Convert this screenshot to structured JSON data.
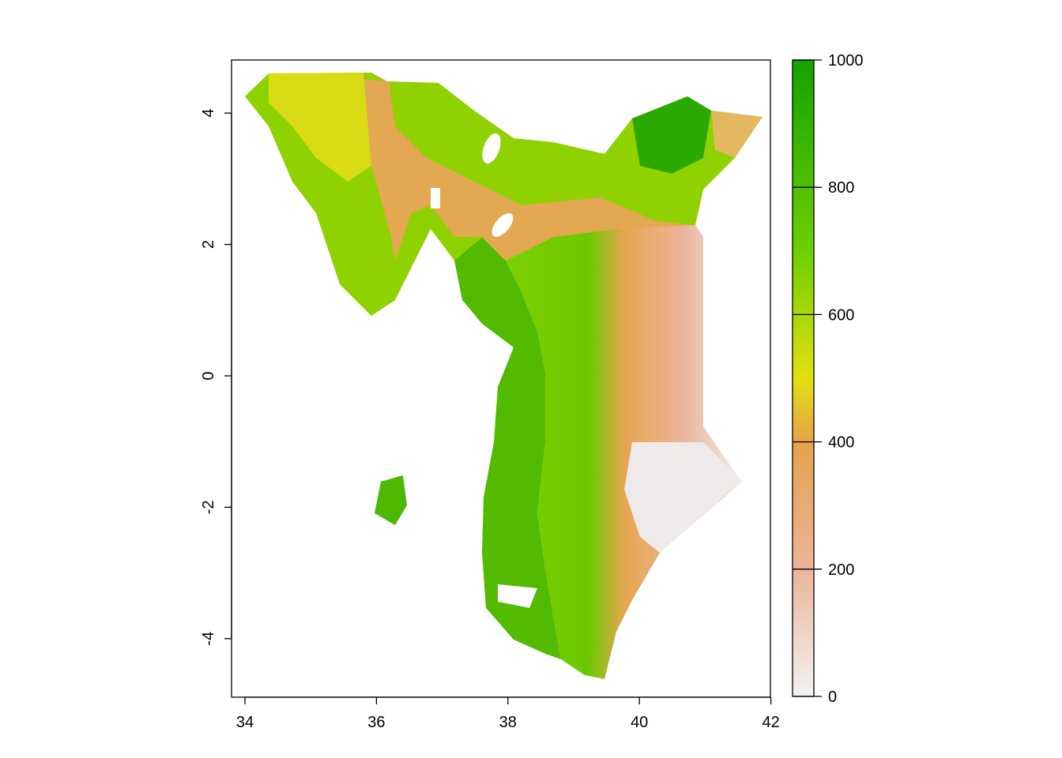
{
  "map": {
    "x_axis": {
      "range": [
        33.8,
        42.0
      ],
      "ticks": [
        {
          "value": 34,
          "label": "34"
        },
        {
          "value": 36,
          "label": "36"
        },
        {
          "value": 38,
          "label": "38"
        },
        {
          "value": 40,
          "label": "40"
        },
        {
          "value": 42,
          "label": "42"
        }
      ]
    },
    "y_axis": {
      "range": [
        -4.9,
        4.8
      ],
      "ticks": [
        {
          "value": 4,
          "label": "4"
        },
        {
          "value": 2,
          "label": "2"
        },
        {
          "value": 0,
          "label": "0"
        },
        {
          "value": -2,
          "label": "-2"
        },
        {
          "value": -4,
          "label": "-4"
        }
      ]
    },
    "legend": {
      "placement": "right",
      "range": [
        0,
        1000
      ],
      "ticks": [
        {
          "value": 1000,
          "label": "1000"
        },
        {
          "value": 800,
          "label": "800"
        },
        {
          "value": 600,
          "label": "600"
        },
        {
          "value": 400,
          "label": "400"
        },
        {
          "value": 200,
          "label": "200"
        },
        {
          "value": 0,
          "label": "0"
        }
      ],
      "colors": [
        "#f2f2f2",
        "#ebb499",
        "#e6a24c",
        "#e3e00f",
        "#6ecf00",
        "#13a200"
      ]
    },
    "raster_colors": {
      "low": "#f0f0f0",
      "low_mid": "#ebb49b",
      "mid": "#e6a64f",
      "high_mid": "#dfe012",
      "high": "#7bd000",
      "top": "#1aa400"
    }
  }
}
